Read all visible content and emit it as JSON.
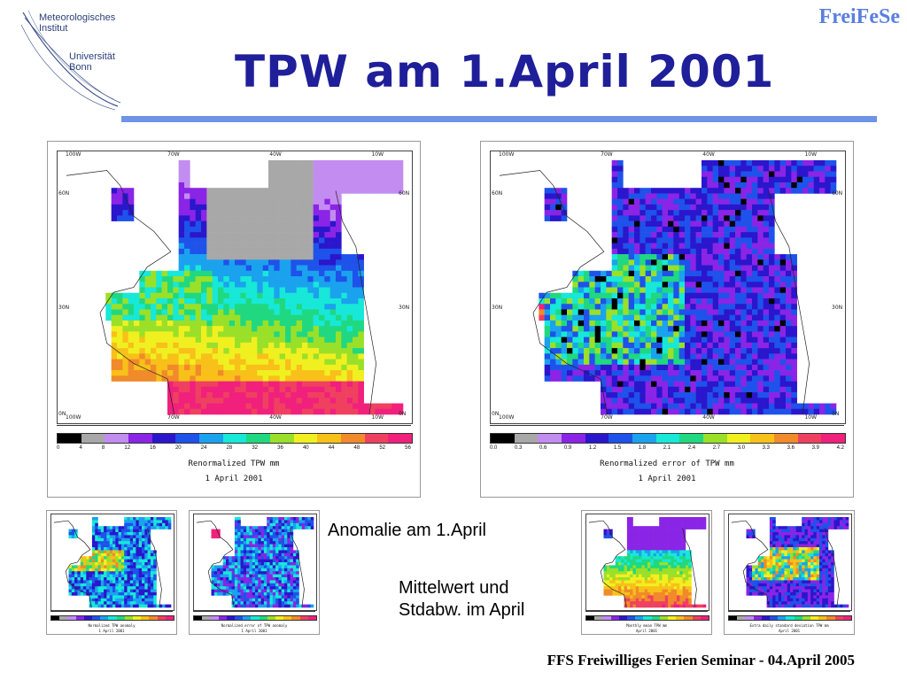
{
  "logo": {
    "line1": "Meteorologisches",
    "line2": "Institut",
    "line3": "Universität",
    "line4": "Bonn"
  },
  "brand": "FreiFeSe",
  "title": "TPW am 1.April 2001",
  "maps_main": [
    {
      "id": "tpw",
      "lon_labels": [
        "100W",
        "70W",
        "40W",
        "10W"
      ],
      "lon_labels_bottom": [
        "100W",
        "70W",
        "40W",
        "10W"
      ],
      "lat_labels": [
        "60N",
        "30N",
        "0N"
      ],
      "colorbar_values": [
        "0",
        "4",
        "8",
        "12",
        "16",
        "20",
        "24",
        "28",
        "32",
        "36",
        "40",
        "44",
        "48",
        "52",
        "56"
      ],
      "caption_line1": "Renormalized TPW   mm",
      "caption_line2": "1 April 2001"
    },
    {
      "id": "error",
      "lon_labels": [
        "100W",
        "70W",
        "40W",
        "10W"
      ],
      "lon_labels_bottom": [
        "100W",
        "70W",
        "40W",
        "10W"
      ],
      "lat_labels": [
        "60N",
        "30N",
        "0N"
      ],
      "colorbar_values": [
        "0.0",
        "0.3",
        "0.6",
        "0.9",
        "1.2",
        "1.5",
        "1.8",
        "2.1",
        "2.4",
        "2.7",
        "3.0",
        "3.3",
        "3.6",
        "3.9",
        "4.2"
      ],
      "caption_line1": "Renormalized error of TPW   mm",
      "caption_line2": "1 April 2001"
    }
  ],
  "maps_small": [
    {
      "caption_line1": "Normalized TPW anomaly",
      "caption_line2": "1 April 2001"
    },
    {
      "caption_line1": "Normalized error of TPW anomaly",
      "caption_line2": "1 April 2001"
    },
    {
      "caption_line1": "Monthly mean TPW   mm",
      "caption_line2": "April 2001"
    },
    {
      "caption_line1": "Extra daily standard deviation TPW   mm",
      "caption_line2": "April 2001"
    }
  ],
  "colorbar_colors": [
    "#000000",
    "#a8a8a8",
    "#c28cf0",
    "#8a24e6",
    "#2a16cc",
    "#1e52ea",
    "#1aa2ee",
    "#17e8d8",
    "#20d880",
    "#9ae028",
    "#f0f020",
    "#f8c018",
    "#f08a2a",
    "#f04060",
    "#f0207c"
  ],
  "annotation_1": "Anomalie am 1.April",
  "annotation_2_line1": "Mittelwert und",
  "annotation_2_line2": "Stdabw. im April",
  "footer": "FFS Freiwilliges Ferien Seminar - 04.April 2005"
}
